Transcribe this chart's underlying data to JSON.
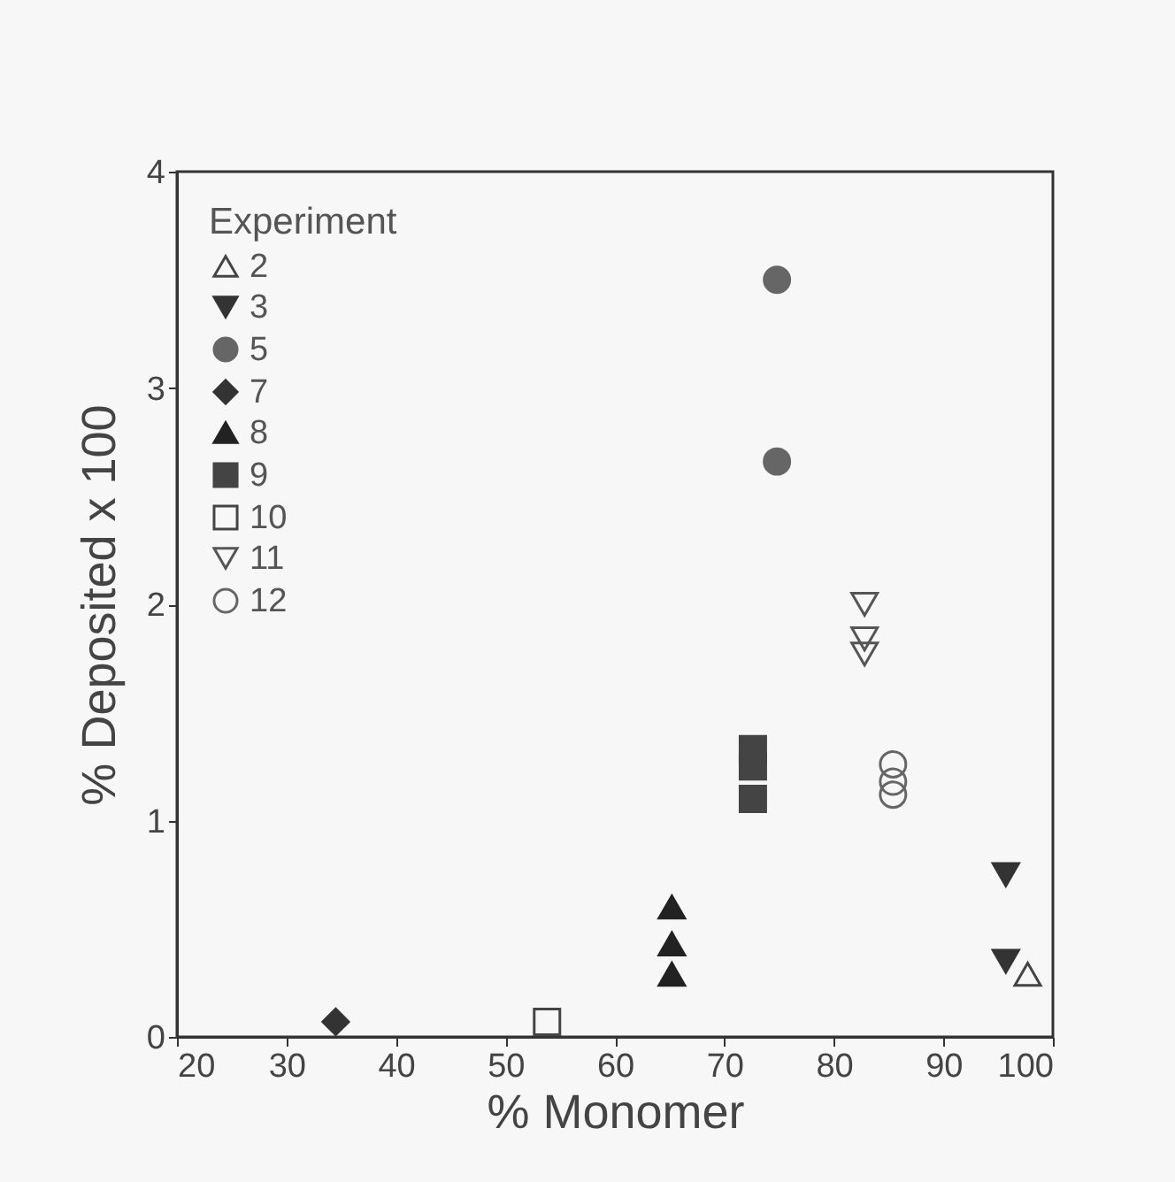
{
  "chart_data": {
    "type": "scatter",
    "xlabel": "% Monomer",
    "ylabel": "% Deposited x 100",
    "legend_title": "Experiment",
    "legend": "top left",
    "grid": false,
    "xlim": [
      20,
      100
    ],
    "xticks": [
      20,
      30,
      40,
      50,
      60,
      70,
      80,
      90,
      100
    ],
    "ylim": [
      0,
      4
    ],
    "yticks": [
      0,
      1,
      2,
      3,
      4
    ],
    "series": [
      {
        "name": "2",
        "color": "#444444",
        "marker": "triangle-open",
        "x": [
          97.7
        ],
        "values": [
          0.29
        ]
      },
      {
        "name": "3",
        "color": "#333333",
        "marker": "triangle-down",
        "x": [
          95.7,
          95.7
        ],
        "values": [
          0.75,
          0.35
        ]
      },
      {
        "name": "5",
        "color": "#666666",
        "marker": "circle",
        "x": [
          74.8,
          74.8
        ],
        "values": [
          3.5,
          2.66
        ]
      },
      {
        "name": "7",
        "color": "#333333",
        "marker": "diamond",
        "x": [
          34.5
        ],
        "values": [
          0.07
        ]
      },
      {
        "name": "8",
        "color": "#222222",
        "marker": "triangle",
        "x": [
          65.2,
          65.2,
          65.2
        ],
        "values": [
          0.6,
          0.43,
          0.29
        ]
      },
      {
        "name": "9",
        "color": "#444444",
        "marker": "square",
        "x": [
          72.6,
          72.6,
          72.6
        ],
        "values": [
          1.33,
          1.25,
          1.1
        ]
      },
      {
        "name": "10",
        "color": "#444444",
        "marker": "square-open",
        "x": [
          53.8
        ],
        "values": [
          0.07
        ]
      },
      {
        "name": "11",
        "color": "#555555",
        "marker": "triangle-down-open",
        "x": [
          82.8,
          82.8,
          82.8
        ],
        "values": [
          2.0,
          1.84,
          1.77
        ]
      },
      {
        "name": "12",
        "color": "#666666",
        "marker": "circle-open",
        "x": [
          85.4,
          85.4,
          85.4
        ],
        "values": [
          1.26,
          1.18,
          1.12
        ]
      }
    ]
  }
}
